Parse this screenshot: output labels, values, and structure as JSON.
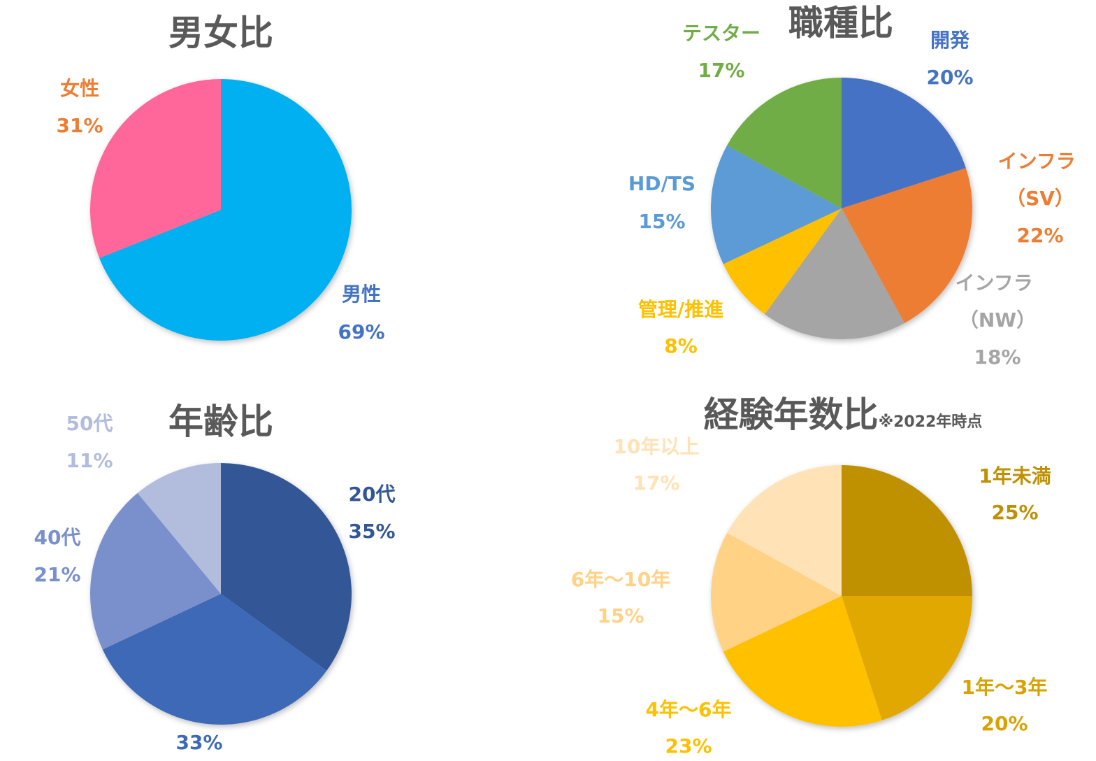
{
  "chart_data": [
    {
      "type": "pie",
      "title": "男女比",
      "slices": [
        {
          "label": "男性",
          "value": 69,
          "value_label": "69%",
          "color": "#00B0F0",
          "label_color": "#4472C4"
        },
        {
          "label": "女性",
          "value": 31,
          "value_label": "31%",
          "color": "#FF6699",
          "label_color": "#ED7D31"
        }
      ]
    },
    {
      "type": "pie",
      "title": "職種比",
      "slices": [
        {
          "label": "開発",
          "value": 20,
          "value_label": "20%",
          "color": "#4472C4",
          "label_color": "#4472C4"
        },
        {
          "label": "インフラ（SV）",
          "value": 22,
          "value_label": "22%",
          "color": "#ED7D31",
          "label_color": "#ED7D31"
        },
        {
          "label": "インフラ（NW）",
          "value": 18,
          "value_label": "18%",
          "color": "#A5A5A5",
          "label_color": "#A5A5A5"
        },
        {
          "label": "管理/推進",
          "value": 8,
          "value_label": "8%",
          "color": "#FFC000",
          "label_color": "#FFC000"
        },
        {
          "label": "HD/TS",
          "value": 15,
          "value_label": "15%",
          "color": "#5B9BD5",
          "label_color": "#5B9BD5"
        },
        {
          "label": "テスター",
          "value": 17,
          "value_label": "17%",
          "color": "#70AD47",
          "label_color": "#70AD47"
        }
      ]
    },
    {
      "type": "pie",
      "title": "年齢比",
      "slices": [
        {
          "label": "20代",
          "value": 35,
          "value_label": "35%",
          "color": "#325796",
          "label_color": "#325796"
        },
        {
          "label": "",
          "value": 33,
          "value_label": "33%",
          "color": "#3E69B6",
          "label_color": "#3E69B6"
        },
        {
          "label": "40代",
          "value": 21,
          "value_label": "21%",
          "color": "#7A90CC",
          "label_color": "#7A90CC"
        },
        {
          "label": "50代",
          "value": 11,
          "value_label": "11%",
          "color": "#B2BCDD",
          "label_color": "#B2BCDD"
        }
      ]
    },
    {
      "type": "pie",
      "title": "経験年数比",
      "title_note": "※2022年時点",
      "slices": [
        {
          "label": "1年未満",
          "value": 25,
          "value_label": "25%",
          "color": "#BF9000",
          "label_color": "#BF9000"
        },
        {
          "label": "1年〜3年",
          "value": 20,
          "value_label": "20%",
          "color": "#E0A800",
          "label_color": "#D9A200"
        },
        {
          "label": "4年〜6年",
          "value": 23,
          "value_label": "23%",
          "color": "#FFC000",
          "label_color": "#FFC000"
        },
        {
          "label": "6年〜10年",
          "value": 15,
          "value_label": "15%",
          "color": "#FFD285",
          "label_color": "#FFD285"
        },
        {
          "label": "10年以上",
          "value": 17,
          "value_label": "17%",
          "color": "#FFE2B6",
          "label_color": "#FFE2B6"
        }
      ]
    }
  ]
}
